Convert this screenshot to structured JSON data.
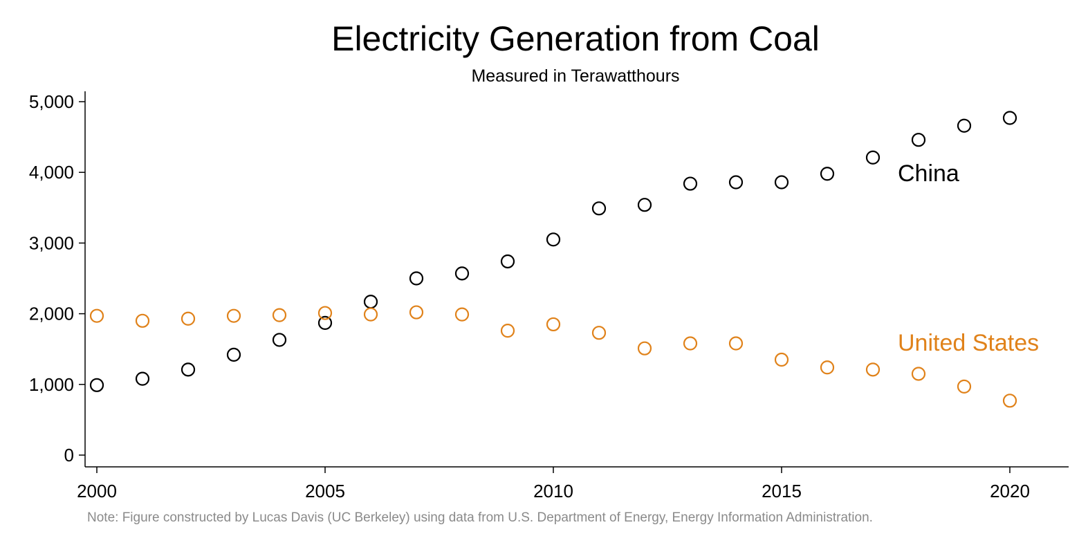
{
  "chart_data": {
    "type": "scatter",
    "title": "Electricity Generation from Coal",
    "subtitle": "Measured in Terawatthours",
    "note": "Note: Figure constructed by Lucas Davis (UC Berkeley) using data from U.S. Department of Energy, Energy Information Administration.",
    "xlabel": "",
    "ylabel": "",
    "xlim": [
      2000,
      2021.2
    ],
    "ylim": [
      0,
      5150
    ],
    "x_ticks": [
      2000,
      2005,
      2010,
      2015,
      2020
    ],
    "x_tick_labels": [
      "2000",
      "2005",
      "2010",
      "2015",
      "2020"
    ],
    "y_ticks": [
      0,
      1000,
      2000,
      3000,
      4000,
      5000
    ],
    "y_tick_labels": [
      "0",
      "1,000",
      "2,000",
      "3,000",
      "4,000",
      "5,000"
    ],
    "grid": false,
    "legend": "direct-labels",
    "x": [
      2000,
      2001,
      2002,
      2003,
      2004,
      2005,
      2006,
      2007,
      2008,
      2009,
      2010,
      2011,
      2012,
      2013,
      2014,
      2015,
      2016,
      2017,
      2018,
      2019,
      2020
    ],
    "series": [
      {
        "name": "China",
        "color": "#000000",
        "values": [
          990,
          1080,
          1210,
          1420,
          1630,
          1870,
          2170,
          2500,
          2570,
          2740,
          3050,
          3490,
          3540,
          3840,
          3860,
          3860,
          3980,
          4210,
          4460,
          4660,
          4770
        ]
      },
      {
        "name": "United States",
        "color": "#e0821a",
        "values": [
          1970,
          1900,
          1930,
          1970,
          1980,
          2010,
          1990,
          2020,
          1990,
          1760,
          1850,
          1730,
          1510,
          1580,
          1580,
          1350,
          1240,
          1210,
          1150,
          970,
          770
        ]
      }
    ]
  }
}
